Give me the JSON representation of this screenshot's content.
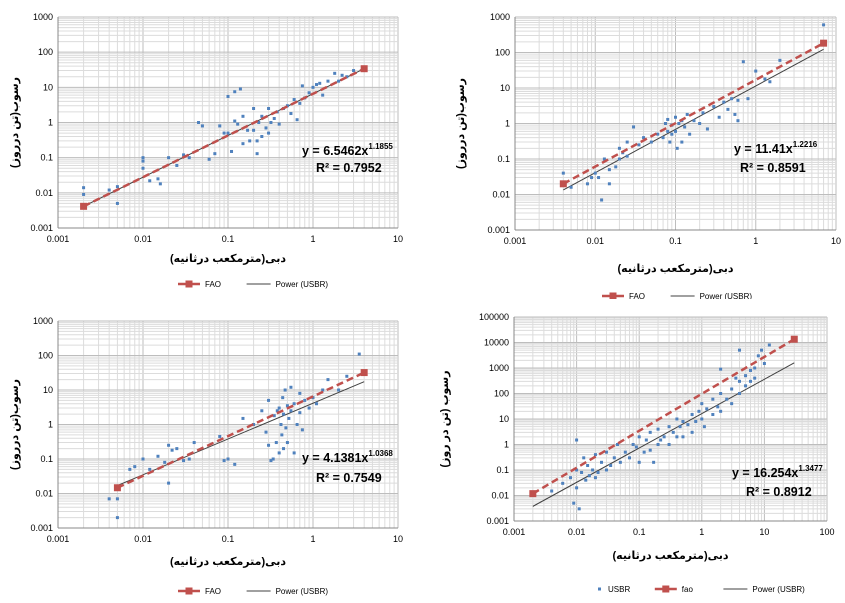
{
  "chart_data": [
    {
      "type": "scatter",
      "scale": "log-log",
      "xlim": [
        0.001,
        10
      ],
      "ylim": [
        0.001,
        1000
      ],
      "xticks": [
        "0.001",
        "0.01",
        "0.1",
        "1",
        "10"
      ],
      "yticks": [
        "0.001",
        "0.01",
        "0.1",
        "1",
        "10",
        "100",
        "1000"
      ],
      "xlabel": "دبی(مترمکعب درثانیه)",
      "ylabel": "رسوب(تن درروز)",
      "equation": "y = 6.5462x",
      "equation_exponent": "1.1855",
      "r2_label": "R² = 0.7952",
      "fao": {
        "name": "FAO",
        "a": 6.5462,
        "b": 1.1855,
        "x_range": [
          0.002,
          4
        ],
        "color": "#c0504d"
      },
      "power": {
        "name": "Power (USBR)",
        "a": 6.5462,
        "b": 1.1855,
        "x_range": [
          0.002,
          4
        ],
        "color": "#404040"
      },
      "legend": [
        "FAO",
        "Power (USBR)"
      ],
      "marker_color": "#4f81bd",
      "points": [
        [
          0.002,
          0.014
        ],
        [
          0.002,
          0.009
        ],
        [
          0.004,
          0.012
        ],
        [
          0.005,
          0.005
        ],
        [
          0.005,
          0.015
        ],
        [
          0.01,
          0.05
        ],
        [
          0.01,
          0.08
        ],
        [
          0.01,
          0.1
        ],
        [
          0.012,
          0.022
        ],
        [
          0.015,
          0.025
        ],
        [
          0.016,
          0.018
        ],
        [
          0.02,
          0.1
        ],
        [
          0.025,
          0.06
        ],
        [
          0.03,
          0.12
        ],
        [
          0.035,
          0.1
        ],
        [
          0.045,
          1.0
        ],
        [
          0.05,
          0.8
        ],
        [
          0.06,
          0.09
        ],
        [
          0.07,
          0.13
        ],
        [
          0.08,
          0.8
        ],
        [
          0.09,
          0.5
        ],
        [
          0.1,
          5.5
        ],
        [
          0.1,
          0.5
        ],
        [
          0.11,
          0.15
        ],
        [
          0.12,
          1.1
        ],
        [
          0.12,
          7.5
        ],
        [
          0.13,
          0.9
        ],
        [
          0.14,
          9.0
        ],
        [
          0.15,
          0.25
        ],
        [
          0.15,
          1.5
        ],
        [
          0.17,
          0.6
        ],
        [
          0.18,
          0.3
        ],
        [
          0.2,
          0.6
        ],
        [
          0.2,
          2.5
        ],
        [
          0.22,
          0.3
        ],
        [
          0.22,
          0.13
        ],
        [
          0.23,
          1.0
        ],
        [
          0.25,
          0.4
        ],
        [
          0.25,
          1.5
        ],
        [
          0.28,
          0.7
        ],
        [
          0.3,
          2.5
        ],
        [
          0.3,
          0.5
        ],
        [
          0.32,
          1.0
        ],
        [
          0.35,
          1.3
        ],
        [
          0.38,
          2.0
        ],
        [
          0.4,
          0.9
        ],
        [
          0.45,
          2.5
        ],
        [
          0.5,
          3.0
        ],
        [
          0.55,
          1.8
        ],
        [
          0.6,
          4.5
        ],
        [
          0.65,
          1.2
        ],
        [
          0.7,
          3.5
        ],
        [
          0.75,
          11
        ],
        [
          0.8,
          5.0
        ],
        [
          0.9,
          7.0
        ],
        [
          1.0,
          10
        ],
        [
          1.1,
          12
        ],
        [
          1.2,
          13
        ],
        [
          1.3,
          6.0
        ],
        [
          1.5,
          15
        ],
        [
          1.8,
          25
        ],
        [
          2.0,
          15
        ],
        [
          2.2,
          22
        ],
        [
          2.5,
          20
        ],
        [
          3.0,
          30
        ]
      ]
    },
    {
      "type": "scatter",
      "scale": "log-log",
      "xlim": [
        0.001,
        10
      ],
      "ylim": [
        0.001,
        1000
      ],
      "xticks": [
        "0.001",
        "0.01",
        "0.1",
        "1",
        "10"
      ],
      "yticks": [
        "0.001",
        "0.01",
        "0.1",
        "1",
        "10",
        "100",
        "1000"
      ],
      "xlabel": "دبی(مترمکعب درثانیه)",
      "ylabel": "رسوب(تن درروز)",
      "equation": "y = 11.41x",
      "equation_exponent": "1.2216",
      "r2_label": "R² = 0.8591",
      "fao": {
        "name": "FAO",
        "a": 17.0,
        "b": 1.2216,
        "x_range": [
          0.004,
          7
        ],
        "color": "#c0504d"
      },
      "power": {
        "name": "Power (USBR)",
        "a": 11.41,
        "b": 1.2216,
        "x_range": [
          0.004,
          7
        ],
        "color": "#404040"
      },
      "legend": [
        "FAO",
        "Power (USBR)"
      ],
      "marker_color": "#4f81bd",
      "points": [
        [
          0.004,
          0.04
        ],
        [
          0.005,
          0.016
        ],
        [
          0.008,
          0.02
        ],
        [
          0.009,
          0.03
        ],
        [
          0.01,
          0.04
        ],
        [
          0.011,
          0.03
        ],
        [
          0.012,
          0.007
        ],
        [
          0.013,
          0.1
        ],
        [
          0.015,
          0.05
        ],
        [
          0.015,
          0.02
        ],
        [
          0.018,
          0.06
        ],
        [
          0.02,
          0.2
        ],
        [
          0.02,
          0.1
        ],
        [
          0.022,
          0.15
        ],
        [
          0.025,
          0.3
        ],
        [
          0.025,
          0.12
        ],
        [
          0.03,
          0.8
        ],
        [
          0.035,
          0.25
        ],
        [
          0.04,
          0.4
        ],
        [
          0.05,
          0.3
        ],
        [
          0.06,
          0.5
        ],
        [
          0.07,
          0.4
        ],
        [
          0.075,
          1.0
        ],
        [
          0.08,
          0.6
        ],
        [
          0.08,
          1.3
        ],
        [
          0.085,
          0.3
        ],
        [
          0.09,
          0.9
        ],
        [
          0.09,
          0.5
        ],
        [
          0.1,
          1.5
        ],
        [
          0.1,
          0.6
        ],
        [
          0.105,
          0.2
        ],
        [
          0.11,
          1.0
        ],
        [
          0.12,
          1.2
        ],
        [
          0.12,
          0.3
        ],
        [
          0.13,
          0.8
        ],
        [
          0.14,
          1.8
        ],
        [
          0.15,
          0.5
        ],
        [
          0.17,
          1.2
        ],
        [
          0.2,
          1.0
        ],
        [
          0.22,
          2.0
        ],
        [
          0.25,
          0.7
        ],
        [
          0.3,
          3.0
        ],
        [
          0.35,
          1.5
        ],
        [
          0.4,
          4.0
        ],
        [
          0.45,
          2.5
        ],
        [
          0.5,
          5.0
        ],
        [
          0.55,
          1.8
        ],
        [
          0.6,
          4.5
        ],
        [
          0.7,
          55
        ],
        [
          0.8,
          5.0
        ],
        [
          1.0,
          30
        ],
        [
          1.3,
          18
        ],
        [
          1.5,
          15
        ],
        [
          2.0,
          60
        ],
        [
          7,
          600
        ],
        [
          0.6,
          1.2
        ]
      ]
    },
    {
      "type": "scatter",
      "scale": "log-log",
      "xlim": [
        0.001,
        10
      ],
      "ylim": [
        0.001,
        1000
      ],
      "xticks": [
        "0.001",
        "0.01",
        "0.1",
        "1",
        "10"
      ],
      "yticks": [
        "0.001",
        "0.01",
        "0.1",
        "1",
        "10",
        "100",
        "1000"
      ],
      "xlabel": "دبی(مترمکعب درثانیه)",
      "ylabel": "رسوب(تن درروز)",
      "equation": "y = 4.1381x",
      "equation_exponent": "1.0368",
      "r2_label": "R² = 0.7549",
      "fao": {
        "name": "FAO",
        "a": 6.5,
        "b": 1.15,
        "x_range": [
          0.005,
          4
        ],
        "color": "#c0504d"
      },
      "power": {
        "name": "Power (USBR)",
        "a": 4.1381,
        "b": 1.0368,
        "x_range": [
          0.005,
          4
        ],
        "color": "#404040"
      },
      "legend": [
        "FAO",
        "Power (USBR)"
      ],
      "marker_color": "#4f81bd",
      "points": [
        [
          0.004,
          0.007
        ],
        [
          0.005,
          0.002
        ],
        [
          0.005,
          0.007
        ],
        [
          0.007,
          0.05
        ],
        [
          0.008,
          0.06
        ],
        [
          0.01,
          0.1
        ],
        [
          0.012,
          0.05
        ],
        [
          0.015,
          0.12
        ],
        [
          0.018,
          0.08
        ],
        [
          0.02,
          0.25
        ],
        [
          0.02,
          0.02
        ],
        [
          0.022,
          0.18
        ],
        [
          0.025,
          0.2
        ],
        [
          0.03,
          0.09
        ],
        [
          0.035,
          0.1
        ],
        [
          0.04,
          0.3
        ],
        [
          0.08,
          0.45
        ],
        [
          0.09,
          0.09
        ],
        [
          0.1,
          0.1
        ],
        [
          0.12,
          0.07
        ],
        [
          0.15,
          1.5
        ],
        [
          0.2,
          1.0
        ],
        [
          0.25,
          2.5
        ],
        [
          0.28,
          0.6
        ],
        [
          0.3,
          0.25
        ],
        [
          0.3,
          5.0
        ],
        [
          0.32,
          0.09
        ],
        [
          0.34,
          0.1
        ],
        [
          0.35,
          1.8
        ],
        [
          0.37,
          0.3
        ],
        [
          0.38,
          2.5
        ],
        [
          0.4,
          0.15
        ],
        [
          0.4,
          3.0
        ],
        [
          0.42,
          1.0
        ],
        [
          0.43,
          0.5
        ],
        [
          0.44,
          6.0
        ],
        [
          0.45,
          0.2
        ],
        [
          0.45,
          2.0
        ],
        [
          0.47,
          10
        ],
        [
          0.48,
          0.8
        ],
        [
          0.5,
          3.5
        ],
        [
          0.5,
          0.3
        ],
        [
          0.52,
          1.5
        ],
        [
          0.55,
          12
        ],
        [
          0.55,
          2.5
        ],
        [
          0.6,
          0.15
        ],
        [
          0.6,
          4.0
        ],
        [
          0.65,
          1.0
        ],
        [
          0.7,
          2.2
        ],
        [
          0.7,
          8.0
        ],
        [
          0.75,
          0.7
        ],
        [
          0.8,
          5.0
        ],
        [
          0.9,
          3.0
        ],
        [
          1.0,
          6.0
        ],
        [
          1.1,
          4.0
        ],
        [
          1.3,
          10
        ],
        [
          1.5,
          20
        ],
        [
          2.0,
          10
        ],
        [
          2.5,
          25
        ],
        [
          3.5,
          110
        ]
      ]
    },
    {
      "type": "scatter",
      "scale": "log-log",
      "xlim": [
        0.001,
        100
      ],
      "ylim": [
        0.001,
        100000
      ],
      "xticks": [
        "0.001",
        "0.01",
        "0.1",
        "1",
        "10",
        "100"
      ],
      "yticks": [
        "0.001",
        "0.01",
        "0.1",
        "1",
        "10",
        "100",
        "1000",
        "10000",
        "100000"
      ],
      "xlabel": "دبی(مترمکعب درثانیه)",
      "ylabel": "رسوب (تن در روز)",
      "equation": "y = 16.254x",
      "equation_exponent": "1.3477",
      "r2_label": "R² = 0.8912",
      "fao": {
        "name": "fao",
        "a": 97,
        "b": 1.45,
        "x_range": [
          0.002,
          30
        ],
        "color": "#c0504d"
      },
      "power": {
        "name": "Power (USBR)",
        "a": 16.254,
        "b": 1.3477,
        "x_range": [
          0.002,
          30
        ],
        "color": "#404040"
      },
      "legend": [
        "USBR",
        "fao",
        "Power (USBR)"
      ],
      "marker_color": "#4f81bd",
      "points": [
        [
          0.002,
          0.01
        ],
        [
          0.004,
          0.015
        ],
        [
          0.006,
          0.03
        ],
        [
          0.008,
          0.05
        ],
        [
          0.009,
          0.005
        ],
        [
          0.01,
          0.1
        ],
        [
          0.01,
          1.5
        ],
        [
          0.01,
          0.02
        ],
        [
          0.011,
          0.003
        ],
        [
          0.012,
          0.08
        ],
        [
          0.013,
          0.3
        ],
        [
          0.014,
          0.04
        ],
        [
          0.015,
          0.15
        ],
        [
          0.016,
          0.06
        ],
        [
          0.018,
          0.1
        ],
        [
          0.02,
          0.05
        ],
        [
          0.02,
          0.4
        ],
        [
          0.022,
          0.08
        ],
        [
          0.025,
          0.2
        ],
        [
          0.03,
          0.1
        ],
        [
          0.03,
          0.5
        ],
        [
          0.035,
          0.15
        ],
        [
          0.04,
          0.3
        ],
        [
          0.045,
          1.0
        ],
        [
          0.05,
          0.2
        ],
        [
          0.06,
          0.5
        ],
        [
          0.07,
          0.3
        ],
        [
          0.08,
          1.0
        ],
        [
          0.09,
          0.8
        ],
        [
          0.1,
          0.2
        ],
        [
          0.1,
          2.0
        ],
        [
          0.12,
          0.5
        ],
        [
          0.13,
          1.5
        ],
        [
          0.15,
          3.0
        ],
        [
          0.15,
          0.6
        ],
        [
          0.17,
          0.2
        ],
        [
          0.2,
          1.0
        ],
        [
          0.2,
          4.0
        ],
        [
          0.22,
          1.5
        ],
        [
          0.25,
          2.0
        ],
        [
          0.3,
          5.0
        ],
        [
          0.3,
          1.0
        ],
        [
          0.35,
          3.0
        ],
        [
          0.4,
          10
        ],
        [
          0.4,
          2.0
        ],
        [
          0.45,
          5.0
        ],
        [
          0.5,
          8.0
        ],
        [
          0.5,
          2.0
        ],
        [
          0.6,
          6.0
        ],
        [
          0.7,
          15
        ],
        [
          0.7,
          3.0
        ],
        [
          0.8,
          8.0
        ],
        [
          0.9,
          20
        ],
        [
          1.0,
          10
        ],
        [
          1.0,
          40
        ],
        [
          1.1,
          5.0
        ],
        [
          1.2,
          25
        ],
        [
          1.5,
          15
        ],
        [
          1.5,
          60
        ],
        [
          1.8,
          30
        ],
        [
          2.0,
          100
        ],
        [
          2.0,
          20
        ],
        [
          2.5,
          60
        ],
        [
          3.0,
          150
        ],
        [
          3.0,
          40
        ],
        [
          3.5,
          400
        ],
        [
          4.0,
          300
        ],
        [
          4.0,
          100
        ],
        [
          5.0,
          500
        ],
        [
          5.0,
          200
        ],
        [
          6.0,
          800
        ],
        [
          6.0,
          300
        ],
        [
          7.0,
          1000
        ],
        [
          7.0,
          400
        ],
        [
          8.0,
          3000
        ],
        [
          9.0,
          5000
        ],
        [
          10,
          1500
        ],
        [
          12,
          8000
        ],
        [
          4.0,
          5000
        ],
        [
          2.0,
          900
        ]
      ]
    }
  ]
}
